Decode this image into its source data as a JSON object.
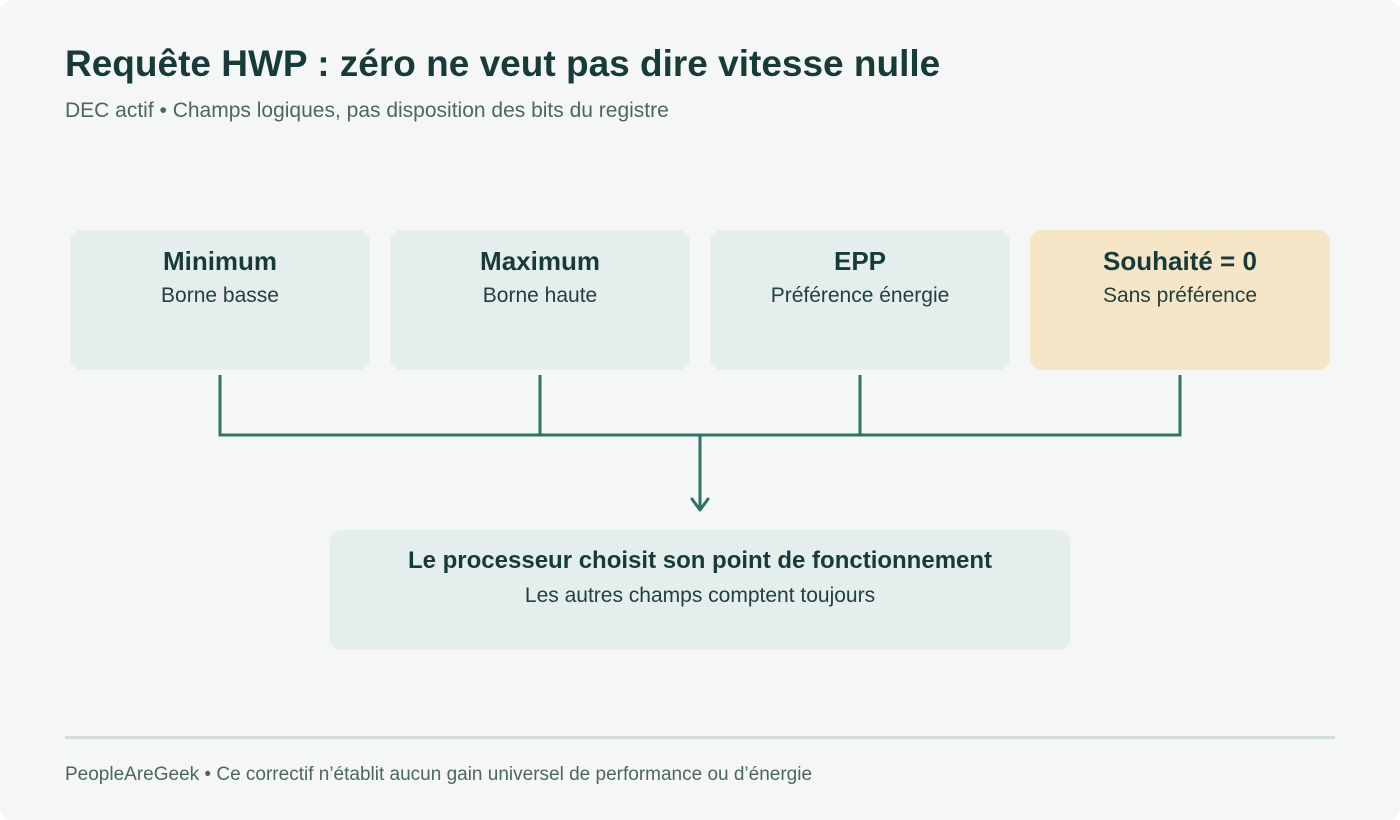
{
  "header": {
    "title": "Requête HWP : zéro ne veut pas dire vitesse nulle",
    "subtitle": "DEC actif • Champs logiques, pas disposition des bits du registre"
  },
  "fields": [
    {
      "title": "Minimum",
      "subtitle": "Borne basse"
    },
    {
      "title": "Maximum",
      "subtitle": "Borne haute"
    },
    {
      "title": "EPP",
      "subtitle": "Préférence énergie"
    },
    {
      "title": "Souhaité = 0",
      "subtitle": "Sans préférence"
    }
  ],
  "result": {
    "title": "Le processeur choisit son point de fonctionnement",
    "subtitle": "Les autres champs comptent toujours"
  },
  "footer": {
    "text": "PeopleAreGeek • Ce correctif n’établit aucun gain universel de performance ou d’énergie"
  },
  "colors": {
    "box": "#e4eeec",
    "highlight_box": "#f6e6c8",
    "connector": "#2e7366",
    "title_text": "#173b39",
    "muted_text": "#4b6664",
    "background": "#f5f7f6"
  }
}
